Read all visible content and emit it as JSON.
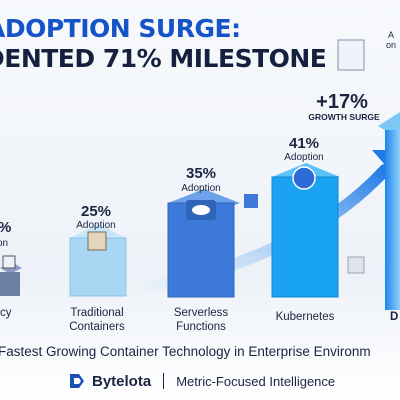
{
  "header": {
    "line1": "ADOPTION SURGE:",
    "line2": "DENTED 71% MILESTONE"
  },
  "chart_data": {
    "type": "bar",
    "categories": [
      "cy",
      "Traditional Containers",
      "Serverless Functions",
      "Kubernetes",
      "D"
    ],
    "category_lines": [
      [
        "cy"
      ],
      [
        "Traditional",
        "Containers"
      ],
      [
        "Serverless",
        "Functions"
      ],
      [
        "Kubernetes"
      ],
      [
        "D"
      ]
    ],
    "values": [
      null,
      25,
      35,
      41,
      71
    ],
    "value_labels": [
      "",
      "25%",
      "35%",
      "41%",
      ""
    ],
    "sub_labels": [
      "",
      "Adoption",
      "Adoption",
      "Adoption",
      ""
    ],
    "partial_labels": [
      "%",
      "on"
    ],
    "highlight": {
      "value_label": "+17%",
      "sub_label": "GROWTH SURGE"
    },
    "top_right_labels": [
      "A",
      "on"
    ],
    "colors": {
      "legacy": "#6d7fa0",
      "traditional": "#a9d6f3",
      "serverless": "#3d79d8",
      "kubernetes": "#1aa3f0",
      "arrow": "#1e7be6"
    }
  },
  "footer": {
    "caption": "Fastest Growing Container Technology in Enterprise Environm",
    "brand_name": "Bytelota",
    "brand_tagline": "Metric-Focused Intelligence"
  }
}
